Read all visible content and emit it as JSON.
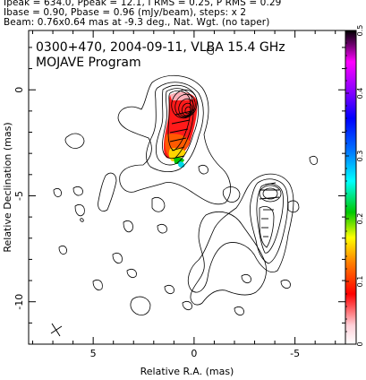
{
  "header": {
    "line1": "Ipeak = 634.0, Ppeak = 12.1, I RMS = 0.25, P RMS = 0.29",
    "line2": "Ibase = 0.90, Pbase = 0.96 (mJy/beam), steps: x 2",
    "line3": "Beam: 0.76x0.64 mas at -9.3 deg., Nat. Wgt. (no taper)"
  },
  "chart_data": {
    "type": "contour",
    "title": "0300+470, 2004-09-11, VLBA 15.4 GHz",
    "subtitle": "MOJAVE Program",
    "xlabel": "Relative R.A. (mas)",
    "ylabel": "Relative Declination (mas)",
    "xlim": [
      8.2,
      -7.5
    ],
    "ylim": [
      -12,
      2.8
    ],
    "x_ticks": [
      5,
      0,
      -5
    ],
    "y_ticks": [
      0,
      -5,
      -10
    ],
    "colorbar": {
      "min": 0,
      "max": 0.5,
      "ticks": [
        0,
        0.1,
        0.2,
        0.3,
        0.4,
        0.5
      ],
      "tick_labels": [
        "0",
        "0.1",
        "0.2",
        "0.3",
        "0.4",
        "0.5"
      ]
    },
    "core": {
      "x": 0.0,
      "y": 0.0
    },
    "secondary_component": {
      "x": -3.8,
      "y": -3.8
    },
    "beam": {
      "major_mas": 0.76,
      "minor_mas": 0.64,
      "pa_deg": -9.3,
      "x": 7.3,
      "y": -11.0
    }
  }
}
